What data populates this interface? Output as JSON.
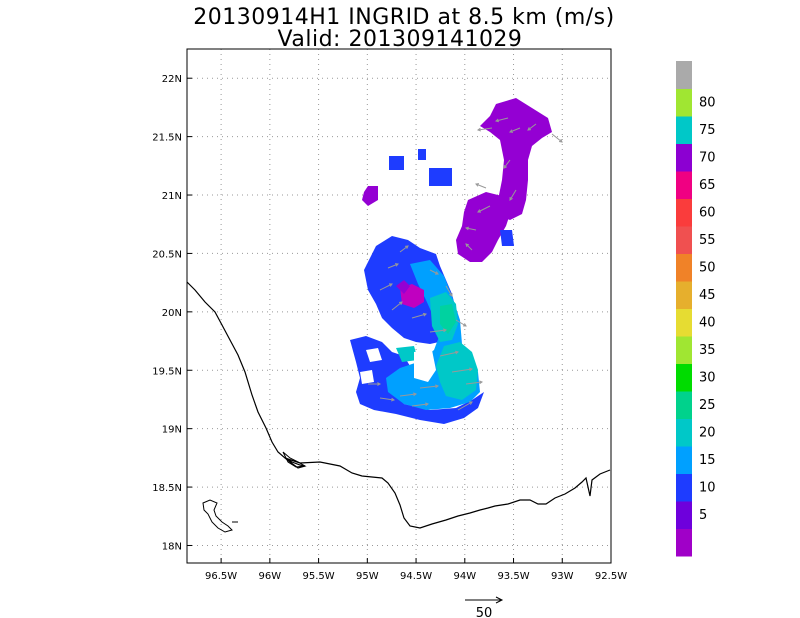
{
  "header": {
    "title": "20130914H1 INGRID at 8.5 km (m/s)",
    "valid": "Valid: 201309141029"
  },
  "map": {
    "lon_range": [
      -96.85,
      -92.5
    ],
    "lat_range": [
      17.85,
      22.25
    ],
    "lon_ticks": [
      {
        "v": -96.5,
        "label": "96.5W"
      },
      {
        "v": -96,
        "label": "96W"
      },
      {
        "v": -95.5,
        "label": "95.5W"
      },
      {
        "v": -95,
        "label": "95W"
      },
      {
        "v": -94.5,
        "label": "94.5W"
      },
      {
        "v": -94,
        "label": "94W"
      },
      {
        "v": -93.5,
        "label": "93.5W"
      },
      {
        "v": -93,
        "label": "93W"
      },
      {
        "v": -92.5,
        "label": "92.5W"
      }
    ],
    "lat_ticks": [
      {
        "v": 18,
        "label": "18N"
      },
      {
        "v": 18.5,
        "label": "18.5N"
      },
      {
        "v": 19,
        "label": "19N"
      },
      {
        "v": 19.5,
        "label": "19.5N"
      },
      {
        "v": 20,
        "label": "20N"
      },
      {
        "v": 20.5,
        "label": "20.5N"
      },
      {
        "v": 21,
        "label": "21N"
      },
      {
        "v": 21.5,
        "label": "21.5N"
      },
      {
        "v": 22,
        "label": "22N"
      }
    ],
    "grid": true
  },
  "colorbar": {
    "labels": [
      "5",
      "10",
      "15",
      "20",
      "25",
      "30",
      "35",
      "40",
      "45",
      "50",
      "55",
      "60",
      "65",
      "70",
      "75",
      "80"
    ],
    "colors": [
      "#a000c8",
      "#6e00dc",
      "#1e3cff",
      "#00a0ff",
      "#00c8c8",
      "#00d28c",
      "#00dc00",
      "#a0e632",
      "#e6dc32",
      "#e6af2d",
      "#f08228",
      "#f05050",
      "#fa3c3c",
      "#f00082",
      "#8c00d2",
      "#00c8c8",
      "#a0e632",
      "#aaaaaa"
    ]
  },
  "vector_key": {
    "label": "50"
  },
  "colors": {
    "purple_low": "#9400d3",
    "blue": "#1e3cff",
    "light_blue": "#00a0ff",
    "cyan": "#00c8c8",
    "aqua_green": "#00d2a0",
    "magenta": "#c000c0",
    "arrow": "#999999"
  }
}
